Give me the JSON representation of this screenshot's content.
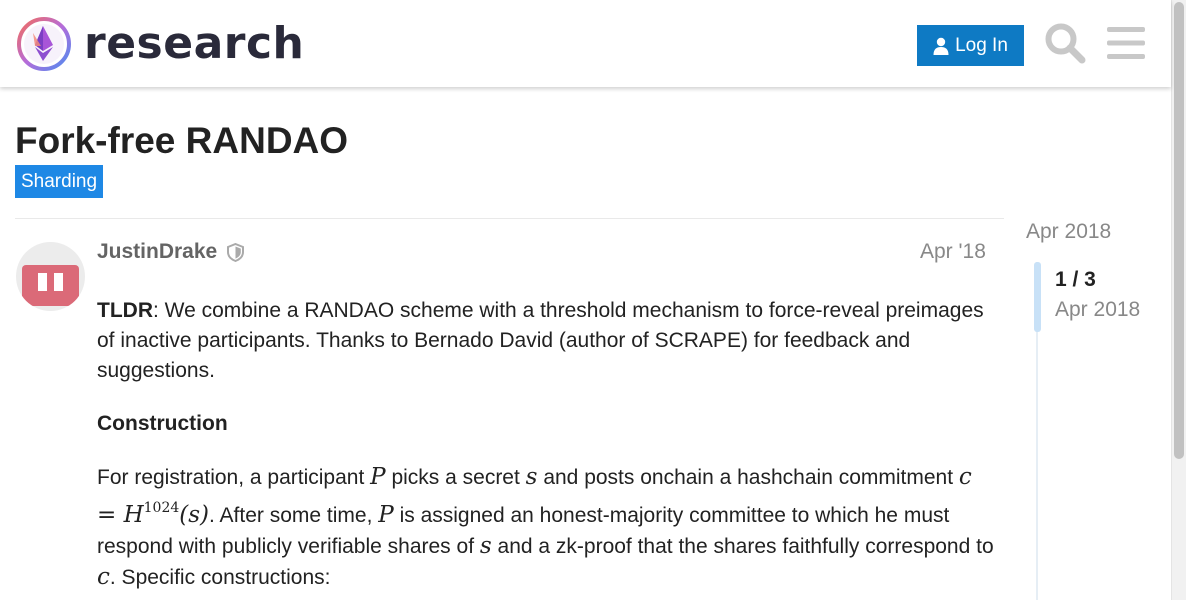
{
  "header": {
    "brand": "research",
    "login_label": "Log In",
    "icons": {
      "logo": "ethereum-research-logo",
      "user": "user-icon",
      "search": "search-icon",
      "menu": "hamburger-menu-icon"
    },
    "accent": "#0e7ac4"
  },
  "topic": {
    "title": "Fork-free RANDAO",
    "category": "Sharding",
    "category_color": "#1e88e5"
  },
  "post": {
    "username": "JustinDrake",
    "badge_icon": "shield-icon",
    "date": "Apr '18",
    "tldr_label": "TLDR",
    "tldr_text": ": We combine a RANDAO scheme with a threshold mechanism to force-reveal preimages of inactive participants. Thanks to Bernado David (author of SCRAPE) for feedback and suggestions.",
    "heading": "Construction",
    "para": {
      "t1": "For registration, a participant ",
      "m1": "P",
      "t2": " picks a secret ",
      "m2": "s",
      "t3": " and posts onchain a hashchain commitment ",
      "m3_main": "c = H",
      "m3_sup": "1024",
      "m3_tail": "(s)",
      "t4": ". After some time, ",
      "m4": "P",
      "t5": " is assigned an honest-majority committee to which he must respond with publicly verifiable shares of ",
      "m5": "s",
      "t6": " and a zk-proof that the shares faithfully correspond to ",
      "m6": "c",
      "t7": ". Specific constructions:"
    }
  },
  "timeline": {
    "start_date": "Apr 2018",
    "position": "1 / 3",
    "position_date": "Apr 2018"
  }
}
